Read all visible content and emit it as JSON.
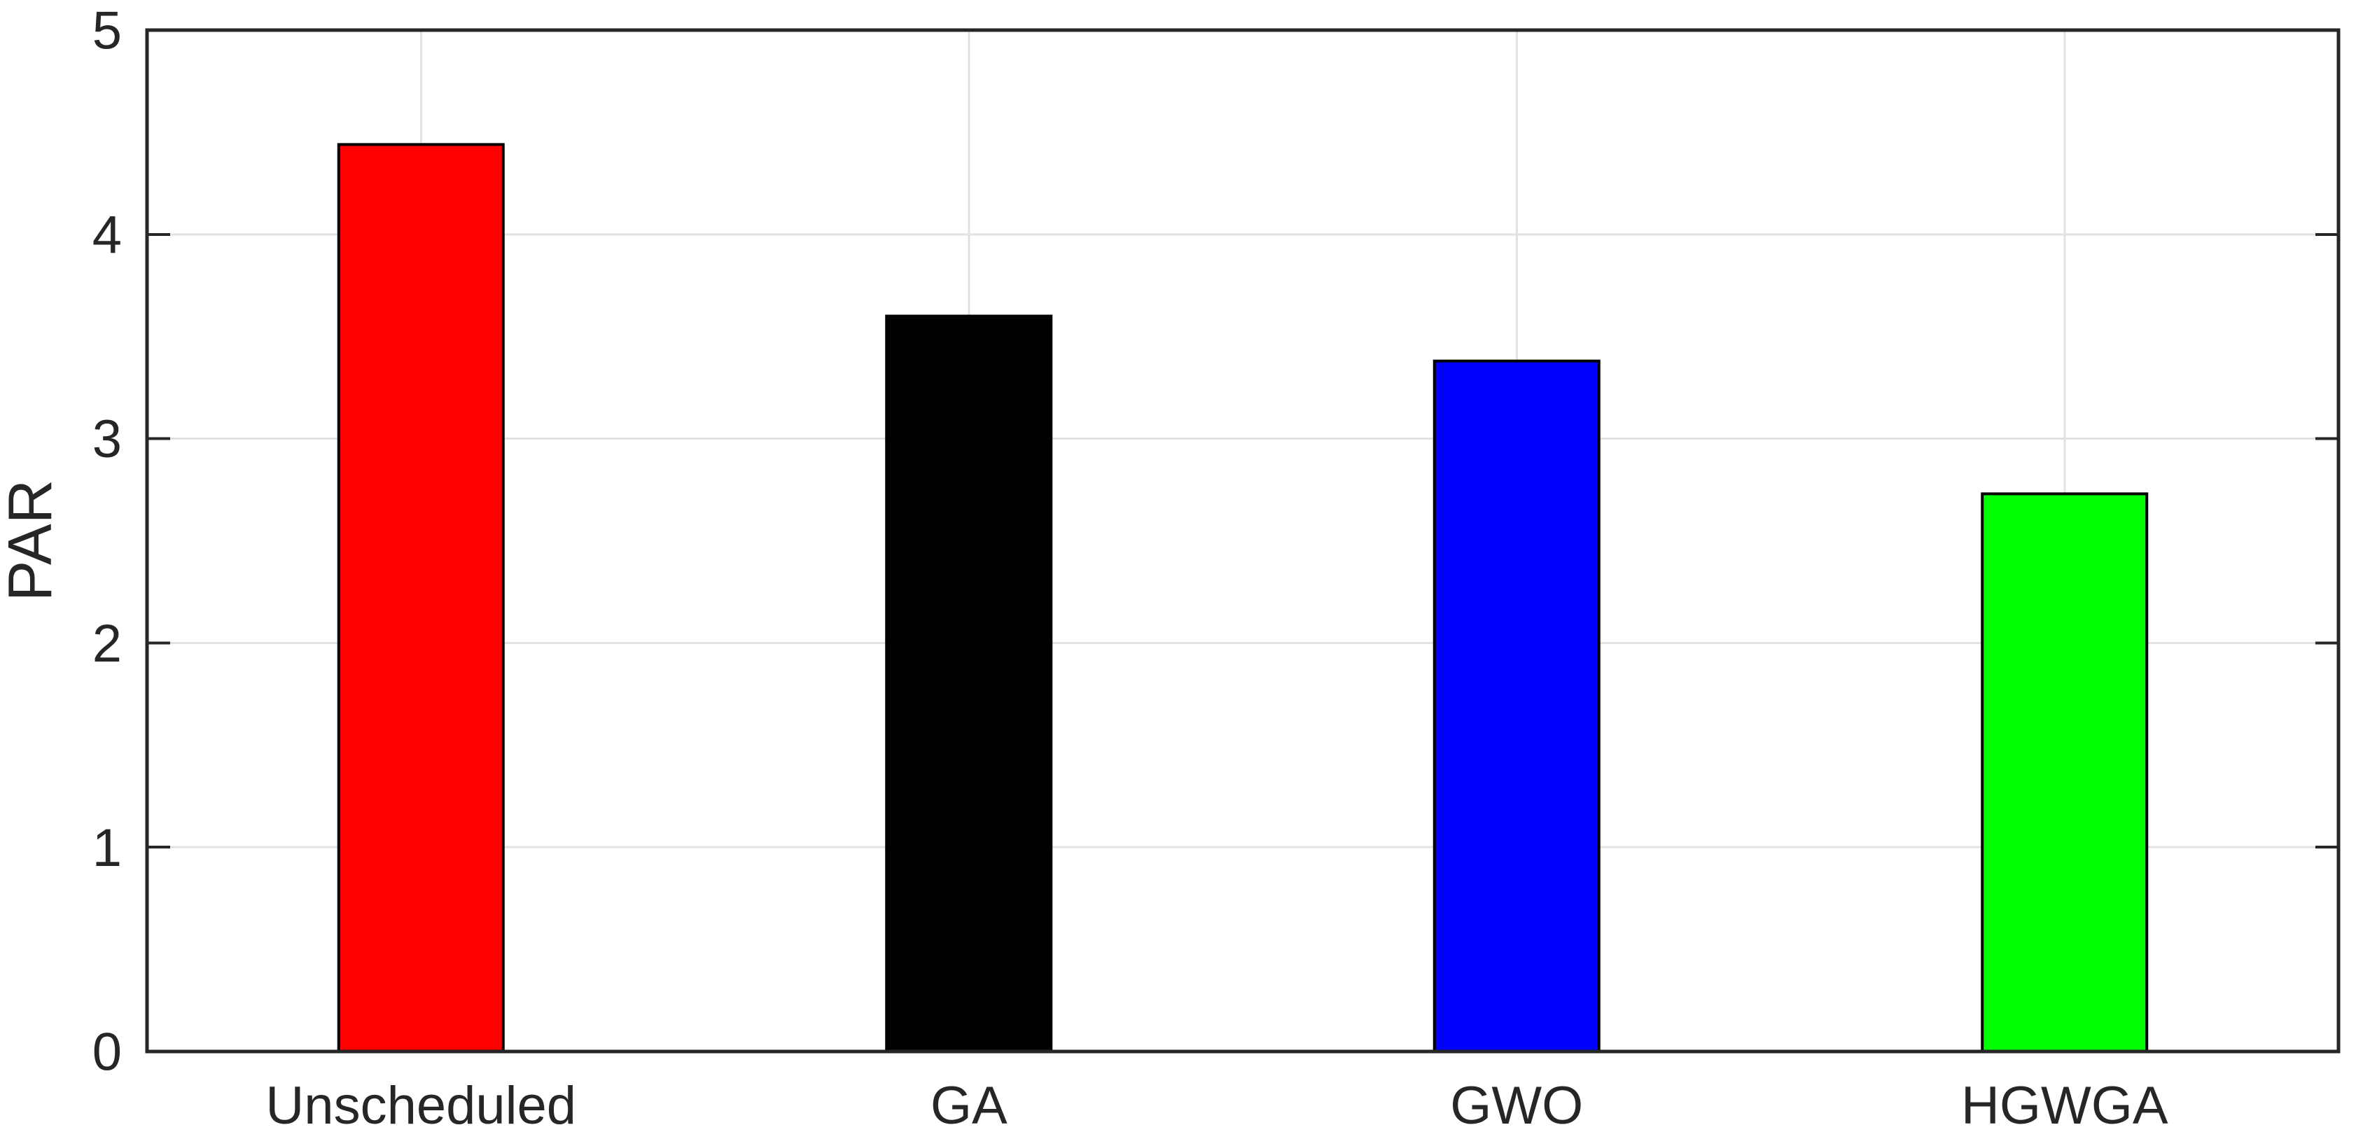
{
  "chart_data": {
    "type": "bar",
    "title": "",
    "xlabel": "",
    "ylabel": "PAR",
    "categories": [
      "Unscheduled",
      "GA",
      "GWO",
      "HGWGA"
    ],
    "values": [
      4.44,
      3.6,
      3.38,
      2.73
    ],
    "bar_colors": [
      "#ff0000",
      "#000000",
      "#0000ff",
      "#00ff00"
    ],
    "bar_edge_color": "#000000",
    "ylim": [
      0,
      5
    ],
    "yticks": [
      0,
      1,
      2,
      3,
      4,
      5
    ],
    "grid": true,
    "grid_color": "#e2e2e2",
    "axis_color": "#262626",
    "background_color": "#ffffff",
    "legend": false,
    "legend_position": "none"
  }
}
